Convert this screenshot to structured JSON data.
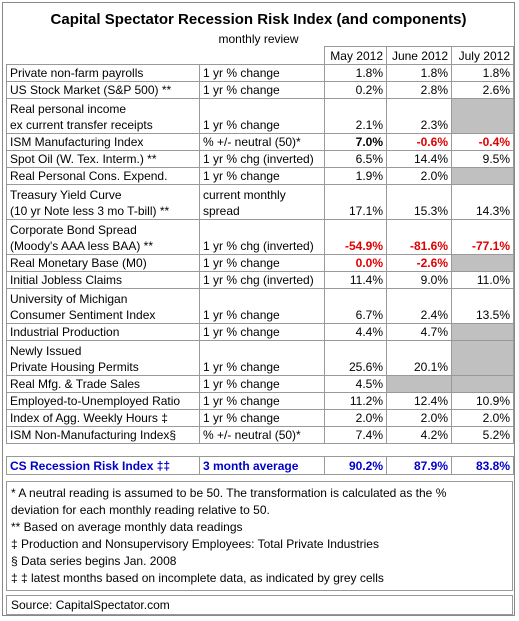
{
  "header": {
    "title": "Capital Spectator Recession Risk Index (and components)",
    "subtitle": "monthly review",
    "columns": [
      "May 2012",
      "June 2012",
      "July 2012"
    ]
  },
  "table": {
    "blank_color": "#c0c0c0",
    "rows": [
      {
        "label": [
          "Private non-farm payrolls"
        ],
        "measure": [
          "1 yr % change"
        ],
        "values": [
          "1.8%",
          "1.8%",
          "1.8%"
        ]
      },
      {
        "label": [
          "US Stock Market (S&P 500) **"
        ],
        "measure": [
          "1 yr % change"
        ],
        "values": [
          "0.2%",
          "2.8%",
          "2.6%"
        ]
      },
      {
        "label": [
          "Real personal income",
          "ex current transfer receipts"
        ],
        "measure": [
          "1 yr % change"
        ],
        "values": [
          "2.1%",
          "2.3%",
          null
        ]
      },
      {
        "label": [
          "ISM Manufacturing Index"
        ],
        "measure": [
          "% +/- neutral (50)*"
        ],
        "values": [
          "7.0%",
          "-0.6%",
          "-0.4%"
        ],
        "value_colors": [
          "#000000",
          "#e00000",
          "#e00000"
        ]
      },
      {
        "label": [
          "Spot Oil (W. Tex. Interm.) **"
        ],
        "measure": [
          "1 yr % chg (inverted)"
        ],
        "values": [
          "6.5%",
          "14.4%",
          "9.5%"
        ]
      },
      {
        "label": [
          "Real Personal Cons. Expend."
        ],
        "measure": [
          "1 yr % change"
        ],
        "values": [
          "1.9%",
          "2.0%",
          null
        ]
      },
      {
        "label": [
          "Treasury Yield Curve",
          "(10 yr Note less 3 mo T-bill) **"
        ],
        "measure": [
          "current monthly",
          "spread"
        ],
        "values": [
          "17.1%",
          "15.3%",
          "14.3%"
        ]
      },
      {
        "label": [
          "Corporate Bond Spread",
          "(Moody's AAA less BAA) **"
        ],
        "measure": [
          "1 yr % chg (inverted)"
        ],
        "values": [
          "-54.9%",
          "-81.6%",
          "-77.1%"
        ],
        "value_colors": [
          "#e00000",
          "#e00000",
          "#e00000"
        ]
      },
      {
        "label": [
          "Real Monetary Base (M0)"
        ],
        "measure": [
          "1 yr % change"
        ],
        "values": [
          "0.0%",
          "-2.6%",
          null
        ],
        "value_colors": [
          "#e00000",
          "#e00000",
          "#e00000"
        ]
      },
      {
        "label": [
          "Initial Jobless Claims"
        ],
        "measure": [
          "1 yr % chg (inverted)"
        ],
        "values": [
          "11.4%",
          "9.0%",
          "11.0%"
        ]
      },
      {
        "label": [
          "University of Michigan",
          "Consumer Sentiment Index"
        ],
        "measure": [
          "1 yr % change"
        ],
        "values": [
          "6.7%",
          "2.4%",
          "13.5%"
        ]
      },
      {
        "label": [
          "Industrial Production"
        ],
        "measure": [
          "1 yr % change"
        ],
        "values": [
          "4.4%",
          "4.7%",
          null
        ]
      },
      {
        "label": [
          "Newly Issued",
          "Private Housing Permits"
        ],
        "measure": [
          "1 yr % change"
        ],
        "values": [
          "25.6%",
          "20.1%",
          null
        ]
      },
      {
        "label": [
          "Real Mfg. & Trade Sales"
        ],
        "measure": [
          "1 yr % change"
        ],
        "values": [
          "4.5%",
          null,
          null
        ]
      },
      {
        "label": [
          "Employed-to-Unemployed Ratio"
        ],
        "measure": [
          "1 yr % change"
        ],
        "values": [
          "11.2%",
          "12.4%",
          "10.9%"
        ]
      },
      {
        "label": [
          "Index of Agg. Weekly Hours ‡"
        ],
        "measure": [
          "1 yr % change"
        ],
        "values": [
          "2.0%",
          "2.0%",
          "2.0%"
        ]
      },
      {
        "label": [
          "ISM Non-Manufacturing Index§"
        ],
        "measure": [
          "% +/- neutral (50)*"
        ],
        "values": [
          "7.4%",
          "4.2%",
          "5.2%"
        ]
      }
    ]
  },
  "summary": {
    "label": "CS Recession Risk Index ‡‡",
    "measure": "3 month average",
    "values": [
      "90.2%",
      "87.9%",
      "83.8%"
    ],
    "color": "#0000cc"
  },
  "notes": [
    "* A neutral reading is assumed to be 50. The transformation is calculated as the %",
    "deviation for each monthly reading relative to 50.",
    "** Based on average monthly data readings",
    "‡ Production and Nonsupervisory Employees: Total Private Industries",
    "§ Data series begins Jan. 2008",
    "‡ ‡ latest months based on incomplete data, as indicated by grey cells"
  ],
  "source": "Source: CapitalSpectator.com"
}
